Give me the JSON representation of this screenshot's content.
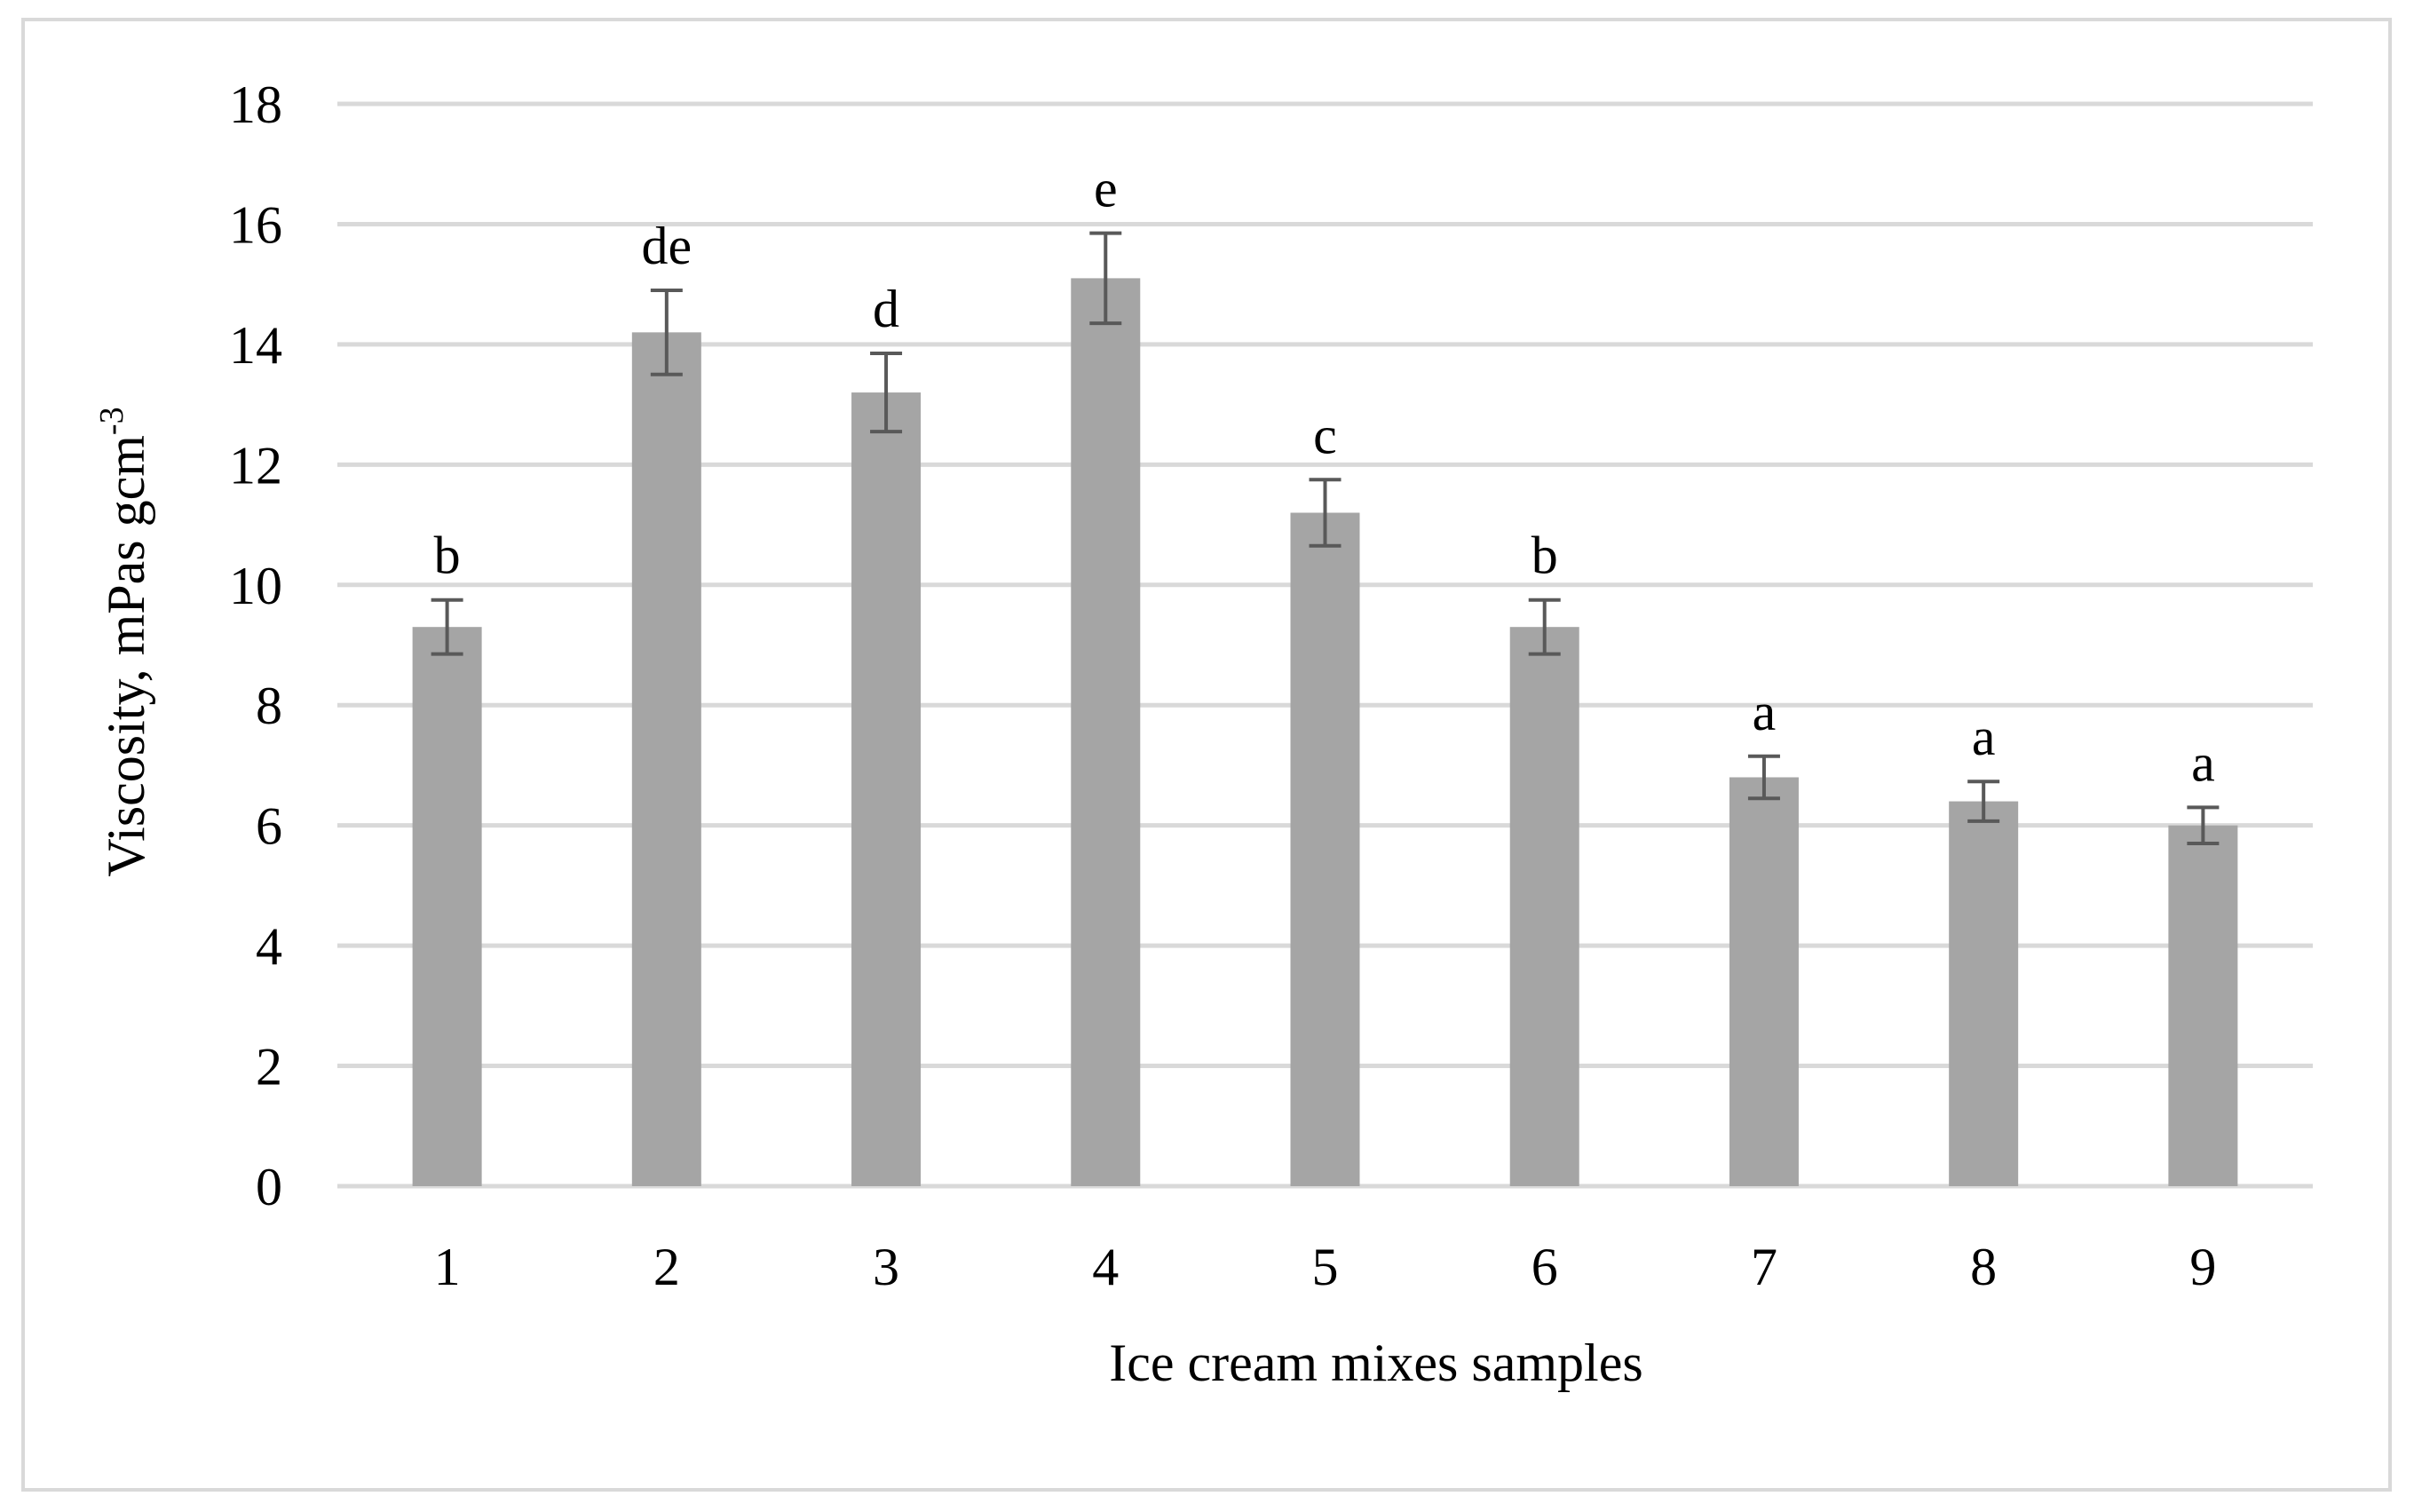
{
  "chart_data": {
    "type": "bar",
    "categories": [
      "1",
      "2",
      "3",
      "4",
      "5",
      "6",
      "7",
      "8",
      "9"
    ],
    "series": [
      {
        "values": [
          9.3,
          14.2,
          13.2,
          15.1,
          11.2,
          9.3,
          6.8,
          6.4,
          6.0
        ],
        "error": [
          0.45,
          0.7,
          0.65,
          0.75,
          0.55,
          0.45,
          0.35,
          0.33,
          0.3
        ],
        "labels": [
          "b",
          "de",
          "d",
          "e",
          "c",
          "b",
          "a",
          "a",
          "a"
        ]
      }
    ],
    "title": "",
    "xlabel": "Ice cream mixes samples",
    "ylabel": "Viscosity, mPas gcm",
    "ylabel_superscript": "-3",
    "ylim": [
      0,
      18
    ],
    "yticks": [
      "0",
      "2",
      "4",
      "6",
      "8",
      "10",
      "12",
      "14",
      "16",
      "18"
    ],
    "grid": true,
    "legend": "none",
    "colors": {
      "bar": "#a5a5a5",
      "error_bar": "#595959",
      "grid": "#d9d9d9",
      "frame": "#d9d9d9"
    }
  }
}
